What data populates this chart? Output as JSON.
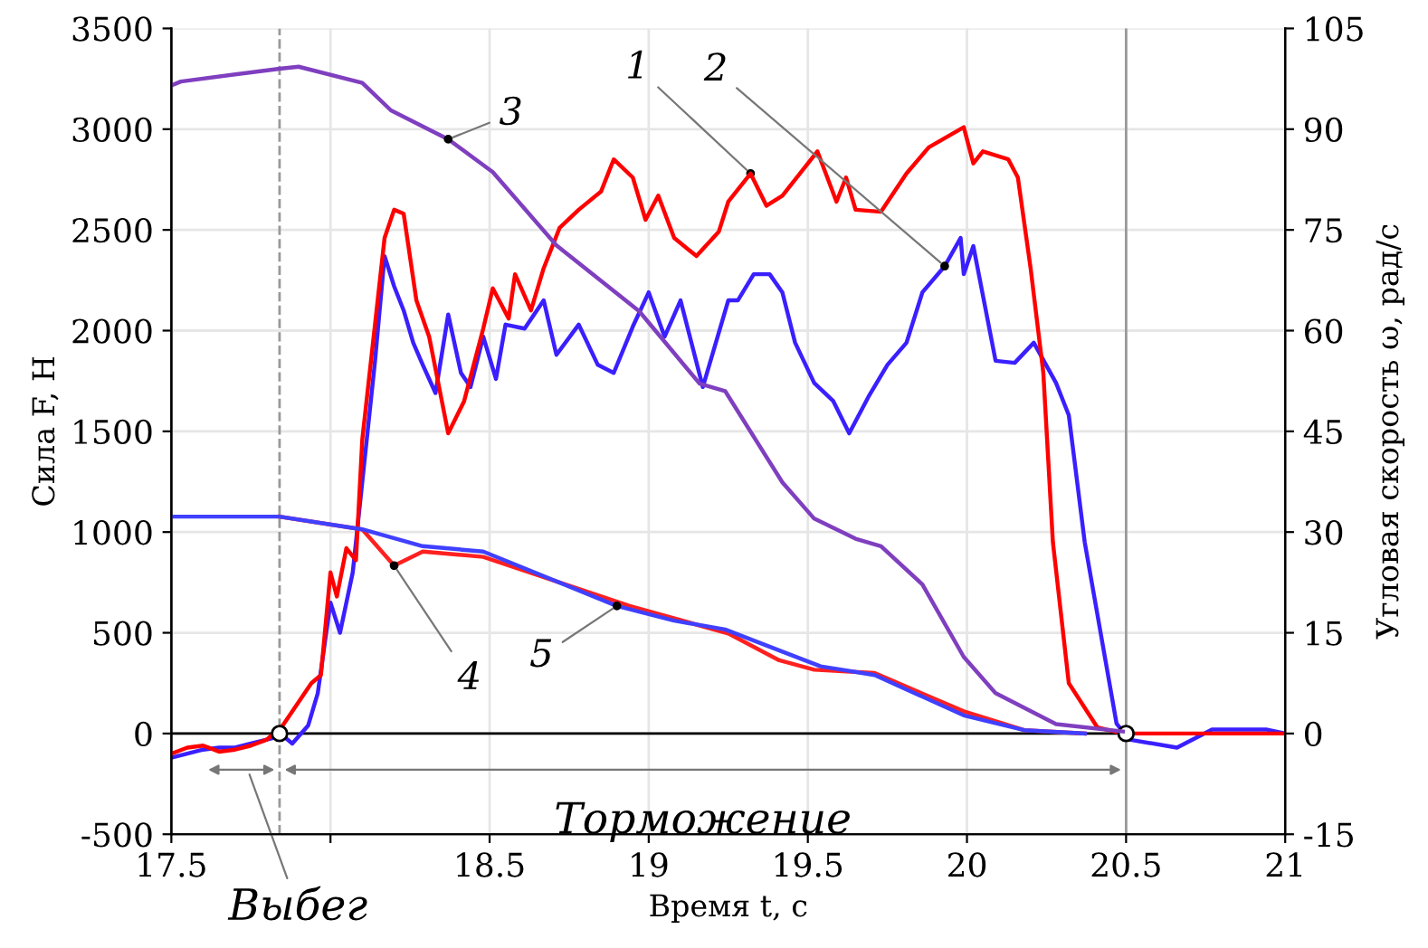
{
  "chart_data": {
    "type": "line",
    "xlabel": "Время t, с",
    "ylabel": "Сила F, Н",
    "y2label": "Угловая скорость ω, рад/с",
    "xlim": [
      17.5,
      21
    ],
    "xticks": [
      17.5,
      {
        "value": 18,
        "label": null
      },
      18.5,
      19,
      19.5,
      20,
      20.5,
      21
    ],
    "ylim": [
      -500,
      3500
    ],
    "yticks": [
      -500,
      0,
      500,
      1000,
      1500,
      2000,
      2500,
      3000,
      3500
    ],
    "y2lim": [
      -15,
      105
    ],
    "y2ticks": [
      -15,
      0,
      15,
      30,
      45,
      60,
      75,
      90,
      105
    ],
    "grid": true,
    "marker": "none",
    "line_style": "solid",
    "series": [
      {
        "name": "1",
        "color": "#ff0000",
        "x": [
          17.5,
          17.55,
          17.6,
          17.65,
          17.7,
          17.75,
          17.8,
          17.85,
          17.94,
          17.97,
          18.0,
          18.02,
          18.05,
          18.08,
          18.1,
          18.17,
          18.2,
          18.23,
          18.27,
          18.31,
          18.37,
          18.42,
          18.48,
          18.51,
          18.56,
          18.58,
          18.63,
          18.67,
          18.72,
          18.78,
          18.85,
          18.89,
          18.95,
          18.99,
          19.03,
          19.08,
          19.15,
          19.22,
          19.25,
          19.32,
          19.37,
          19.42,
          19.53,
          19.59,
          19.62,
          19.65,
          19.73,
          19.81,
          19.88,
          19.99,
          20.02,
          20.05,
          20.13,
          20.16,
          20.2,
          20.24,
          20.27,
          20.32,
          20.41,
          20.49,
          20.7,
          21
        ],
        "values": [
          -100,
          -70,
          -60,
          -90,
          -80,
          -60,
          -30,
          40,
          250,
          290,
          800,
          680,
          920,
          860,
          1460,
          2460,
          2600,
          2580,
          2150,
          1970,
          1490,
          1650,
          2010,
          2210,
          2060,
          2280,
          2100,
          2310,
          2510,
          2600,
          2690,
          2850,
          2760,
          2550,
          2670,
          2460,
          2370,
          2490,
          2640,
          2780,
          2620,
          2670,
          2890,
          2640,
          2760,
          2600,
          2590,
          2780,
          2910,
          3010,
          2830,
          2890,
          2850,
          2760,
          2310,
          1790,
          950,
          250,
          30,
          0,
          0,
          0
        ]
      },
      {
        "name": "2",
        "color": "#3a1fff",
        "x": [
          17.5,
          17.55,
          17.6,
          17.65,
          17.7,
          17.75,
          17.8,
          17.85,
          17.88,
          17.93,
          17.96,
          18.0,
          18.03,
          18.07,
          18.1,
          18.14,
          18.17,
          18.2,
          18.23,
          18.26,
          18.29,
          18.33,
          18.37,
          18.41,
          18.44,
          18.48,
          18.52,
          18.55,
          18.61,
          18.67,
          18.71,
          18.78,
          18.84,
          18.89,
          18.95,
          19.0,
          19.05,
          19.1,
          19.17,
          19.25,
          19.28,
          19.33,
          19.38,
          19.42,
          19.46,
          19.52,
          19.58,
          19.63,
          19.69,
          19.75,
          19.81,
          19.86,
          19.93,
          19.98,
          19.99,
          20.02,
          20.09,
          20.15,
          20.21,
          20.28,
          20.32,
          20.37,
          20.47,
          20.51,
          20.66,
          20.77,
          20.94,
          21
        ],
        "values": [
          -120,
          -100,
          -80,
          -70,
          -70,
          -50,
          -30,
          -10,
          -50,
          40,
          200,
          650,
          500,
          800,
          1250,
          1850,
          2370,
          2220,
          2100,
          1940,
          1830,
          1690,
          2080,
          1790,
          1720,
          1970,
          1760,
          2030,
          2010,
          2150,
          1880,
          2030,
          1830,
          1790,
          2020,
          2190,
          1970,
          2150,
          1720,
          2150,
          2150,
          2280,
          2280,
          2190,
          1940,
          1740,
          1650,
          1490,
          1670,
          1830,
          1940,
          2190,
          2320,
          2460,
          2280,
          2420,
          1850,
          1840,
          1940,
          1740,
          1580,
          950,
          50,
          -30,
          -70,
          20,
          20,
          0
        ]
      },
      {
        "name": "3",
        "color": "#7f3fbf",
        "axis": "y2",
        "x": [
          17.5,
          17.53,
          17.84,
          17.9,
          18.1,
          18.19,
          18.37,
          18.51,
          18.71,
          18.97,
          19.16,
          19.24,
          19.42,
          19.52,
          19.65,
          19.73,
          19.86,
          19.99,
          20.09,
          20.28,
          20.49
        ],
        "values": [
          96.5,
          97.1,
          99.0,
          99.3,
          96.9,
          92.8,
          88.5,
          83.6,
          72.7,
          62.9,
          52.1,
          51.0,
          37.4,
          32.0,
          29.0,
          27.9,
          22.2,
          11.4,
          6.0,
          1.4,
          0.3
        ]
      },
      {
        "name": "4",
        "color": "#ff2020",
        "axis": "y2",
        "x": [
          17.84,
          18.1,
          18.2,
          18.29,
          18.48,
          18.94,
          19.25,
          19.41,
          19.52,
          19.71,
          19.99,
          20.18,
          20.37
        ],
        "values": [
          32.3,
          30.4,
          25.0,
          27.1,
          26.3,
          19.0,
          14.9,
          10.9,
          9.5,
          9.0,
          3.3,
          0.5,
          0
        ]
      },
      {
        "name": "5",
        "color": "#4040ff",
        "axis": "y2",
        "x": [
          17.5,
          17.53,
          17.84,
          18.1,
          18.29,
          18.48,
          18.9,
          19.08,
          19.24,
          19.42,
          19.54,
          19.71,
          19.99,
          20.18,
          20.37
        ],
        "values": [
          32.3,
          32.3,
          32.3,
          30.4,
          27.9,
          27.1,
          19.0,
          16.8,
          15.5,
          12.2,
          10.0,
          8.7,
          2.7,
          0.5,
          0
        ]
      }
    ],
    "ref_lines": [
      {
        "axis": "x",
        "value": 17.84,
        "line_style": "dashed",
        "color": "#999999"
      },
      {
        "axis": "x",
        "value": 20.5,
        "line_style": "solid",
        "color": "#999999"
      }
    ],
    "annotations": [
      "Торможение",
      "Выбег"
    ]
  }
}
